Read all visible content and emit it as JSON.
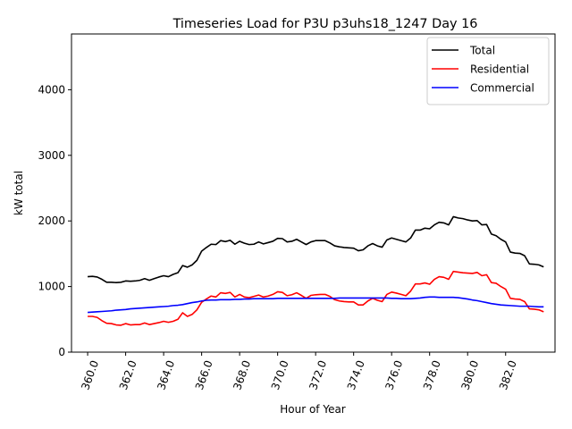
{
  "chart_data": {
    "type": "line",
    "title": "Timeseries Load for P3U p3uhs18_1247  Day 16",
    "xlabel": "Hour of Year",
    "ylabel": "kW total",
    "xlim": [
      359.15,
      384.6
    ],
    "ylim": [
      0,
      4850
    ],
    "x_ticks": [
      360,
      362,
      364,
      366,
      368,
      370,
      372,
      374,
      376,
      378,
      380,
      382
    ],
    "x_tick_labels": [
      "360.0",
      "362.0",
      "364.0",
      "366.0",
      "368.0",
      "370.0",
      "372.0",
      "374.0",
      "376.0",
      "378.0",
      "380.0",
      "382.0"
    ],
    "y_ticks": [
      0,
      1000,
      2000,
      3000,
      4000
    ],
    "y_tick_labels": [
      "0",
      "1000",
      "2000",
      "3000",
      "4000"
    ],
    "grid": false,
    "legend_position": "top-right",
    "x_start": 360.0,
    "x_step": 0.25,
    "series": [
      {
        "name": "Total",
        "color": "#000000",
        "values": [
          1150,
          1155,
          1145,
          1110,
          1065,
          1065,
          1060,
          1065,
          1085,
          1080,
          1085,
          1095,
          1120,
          1095,
          1120,
          1145,
          1165,
          1150,
          1185,
          1210,
          1320,
          1295,
          1330,
          1400,
          1540,
          1595,
          1645,
          1640,
          1700,
          1685,
          1705,
          1645,
          1690,
          1660,
          1640,
          1645,
          1680,
          1650,
          1670,
          1690,
          1735,
          1730,
          1680,
          1690,
          1720,
          1680,
          1640,
          1680,
          1700,
          1700,
          1700,
          1665,
          1620,
          1605,
          1595,
          1590,
          1585,
          1545,
          1560,
          1620,
          1655,
          1620,
          1600,
          1710,
          1740,
          1720,
          1700,
          1680,
          1740,
          1860,
          1860,
          1890,
          1880,
          1940,
          1980,
          1970,
          1940,
          2065,
          2045,
          2035,
          2015,
          2000,
          2005,
          1940,
          1945,
          1800,
          1775,
          1720,
          1680,
          1525,
          1510,
          1505,
          1470,
          1345,
          1340,
          1330,
          1300
        ]
      },
      {
        "name": "Residential",
        "color": "#ff0000",
        "values": [
          545,
          545,
          530,
          480,
          440,
          435,
          415,
          410,
          435,
          415,
          420,
          420,
          445,
          420,
          435,
          450,
          470,
          455,
          470,
          500,
          600,
          545,
          575,
          645,
          760,
          810,
          855,
          840,
          905,
          895,
          910,
          840,
          880,
          840,
          830,
          850,
          870,
          840,
          855,
          880,
          920,
          910,
          860,
          875,
          905,
          865,
          820,
          865,
          875,
          880,
          880,
          850,
          800,
          780,
          770,
          765,
          765,
          720,
          720,
          780,
          820,
          790,
          770,
          880,
          915,
          900,
          880,
          860,
          930,
          1040,
          1040,
          1055,
          1035,
          1110,
          1150,
          1140,
          1110,
          1230,
          1220,
          1210,
          1205,
          1200,
          1215,
          1165,
          1180,
          1060,
          1050,
          1000,
          960,
          820,
          810,
          805,
          770,
          660,
          655,
          645,
          615
        ]
      },
      {
        "name": "Commercial",
        "color": "#0000ff",
        "values": [
          605,
          610,
          615,
          620,
          625,
          630,
          640,
          645,
          650,
          660,
          665,
          670,
          675,
          680,
          685,
          690,
          695,
          700,
          710,
          715,
          725,
          740,
          755,
          765,
          780,
          790,
          795,
          795,
          800,
          800,
          800,
          805,
          805,
          810,
          810,
          815,
          815,
          815,
          815,
          815,
          820,
          820,
          820,
          820,
          820,
          820,
          820,
          820,
          820,
          820,
          820,
          820,
          820,
          825,
          825,
          825,
          825,
          825,
          825,
          825,
          825,
          825,
          825,
          825,
          820,
          820,
          815,
          815,
          815,
          820,
          825,
          835,
          840,
          840,
          835,
          835,
          835,
          835,
          830,
          820,
          810,
          795,
          785,
          770,
          755,
          740,
          730,
          720,
          715,
          710,
          705,
          700,
          700,
          700,
          695,
          690,
          690
        ]
      }
    ]
  }
}
